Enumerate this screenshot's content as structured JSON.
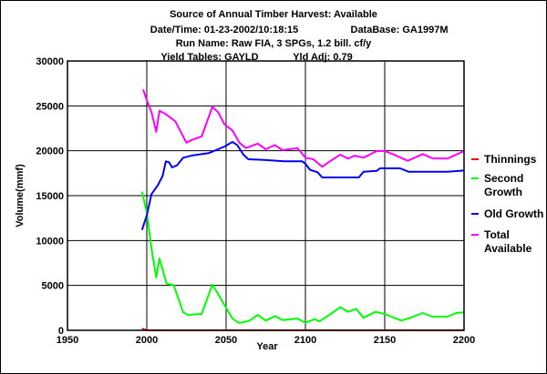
{
  "header": {
    "title": "Source of Annual Timber Harvest: Available",
    "datetime": "Date/Time: 01-23-2002/10:18:15",
    "database": "DataBase: GA1997M",
    "run_name": "Run Name: Raw FIA, 3 SPGs, 1.2 bill. cf/y",
    "yield_tables": "Yield Tables: GAYLD",
    "yld_adj": "Yld Adj: 0.79"
  },
  "chart_data": {
    "type": "line",
    "title": "Source of Annual Timber Harvest: Available",
    "xlabel": "Year",
    "ylabel": "Volume(mmf)",
    "xlim": [
      1950,
      2200
    ],
    "ylim": [
      0,
      30000
    ],
    "xticks": [
      "1950",
      "2000",
      "2050",
      "2100",
      "2150",
      "2200"
    ],
    "yticks": [
      "0",
      "5000",
      "10000",
      "15000",
      "20000",
      "25000",
      "30000"
    ],
    "grid": true,
    "legend_placement": "right",
    "series": [
      {
        "name": "Thinnings",
        "color": "#ff0000",
        "points": [
          [
            1997,
            200
          ],
          [
            2000,
            0
          ],
          [
            2200,
            0
          ]
        ]
      },
      {
        "name": "Second Growth",
        "color": "#00ff00",
        "points": [
          [
            1997,
            15440
          ],
          [
            2000,
            13140
          ],
          [
            2003,
            9090
          ],
          [
            2006,
            5880
          ],
          [
            2008,
            8010
          ],
          [
            2012.5,
            5200
          ],
          [
            2017,
            5030
          ],
          [
            2023,
            2000
          ],
          [
            2026,
            1720
          ],
          [
            2034.6,
            1820
          ],
          [
            2041.4,
            5100
          ],
          [
            2045,
            4020
          ],
          [
            2050,
            2500
          ],
          [
            2054,
            1320
          ],
          [
            2058,
            810
          ],
          [
            2064.5,
            1040
          ],
          [
            2070,
            1720
          ],
          [
            2075,
            1080
          ],
          [
            2081,
            1590
          ],
          [
            2085.6,
            1150
          ],
          [
            2095,
            1320
          ],
          [
            2100,
            850
          ],
          [
            2106,
            1250
          ],
          [
            2108.7,
            980
          ],
          [
            2116,
            1820
          ],
          [
            2122,
            2570
          ],
          [
            2127,
            2060
          ],
          [
            2132,
            2400
          ],
          [
            2136.6,
            1390
          ],
          [
            2144,
            2060
          ],
          [
            2150,
            1820
          ],
          [
            2160.6,
            1080
          ],
          [
            2166,
            1390
          ],
          [
            2174,
            1930
          ],
          [
            2180,
            1520
          ],
          [
            2189.5,
            1520
          ],
          [
            2195,
            1930
          ],
          [
            2200,
            2000
          ]
        ]
      },
      {
        "name": "Old Growth",
        "color": "#0000ff",
        "points": [
          [
            1997,
            11180
          ],
          [
            2000,
            12800
          ],
          [
            2003,
            15170
          ],
          [
            2007,
            16180
          ],
          [
            2010,
            17200
          ],
          [
            2012,
            18820
          ],
          [
            2014,
            18720
          ],
          [
            2016,
            18140
          ],
          [
            2019,
            18370
          ],
          [
            2023,
            19230
          ],
          [
            2029,
            19490
          ],
          [
            2039,
            19730
          ],
          [
            2049,
            20470
          ],
          [
            2054,
            20980
          ],
          [
            2057,
            20640
          ],
          [
            2061,
            19560
          ],
          [
            2064,
            19050
          ],
          [
            2074,
            18980
          ],
          [
            2086.6,
            18820
          ],
          [
            2098,
            18820
          ],
          [
            2100,
            18550
          ],
          [
            2103,
            17870
          ],
          [
            2107.7,
            17600
          ],
          [
            2110.6,
            17030
          ],
          [
            2133.7,
            17030
          ],
          [
            2136.6,
            17670
          ],
          [
            2145,
            17770
          ],
          [
            2147,
            18040
          ],
          [
            2159.7,
            18040
          ],
          [
            2165,
            17670
          ],
          [
            2189.5,
            17670
          ],
          [
            2200,
            17800
          ]
        ]
      },
      {
        "name": "Total Available",
        "color": "#ff00ff",
        "points": [
          [
            1997.7,
            26830
          ],
          [
            2000,
            25640
          ],
          [
            2003,
            24290
          ],
          [
            2006,
            22100
          ],
          [
            2008,
            24460
          ],
          [
            2011.6,
            24120
          ],
          [
            2018,
            23280
          ],
          [
            2025,
            20900
          ],
          [
            2029,
            21250
          ],
          [
            2034.6,
            21590
          ],
          [
            2041.4,
            24900
          ],
          [
            2045,
            24290
          ],
          [
            2049,
            22940
          ],
          [
            2054,
            22260
          ],
          [
            2058.4,
            20900
          ],
          [
            2062.5,
            20300
          ],
          [
            2070,
            20800
          ],
          [
            2075,
            20170
          ],
          [
            2080.8,
            20640
          ],
          [
            2085.5,
            20070
          ],
          [
            2095,
            20300
          ],
          [
            2100,
            19230
          ],
          [
            2105,
            19050
          ],
          [
            2110.6,
            18210
          ],
          [
            2116,
            18880
          ],
          [
            2122,
            19560
          ],
          [
            2127,
            19120
          ],
          [
            2131,
            19460
          ],
          [
            2136.6,
            19230
          ],
          [
            2145,
            19970
          ],
          [
            2150,
            19970
          ],
          [
            2155,
            19630
          ],
          [
            2164.5,
            18880
          ],
          [
            2174,
            19630
          ],
          [
            2180,
            19160
          ],
          [
            2189.5,
            19120
          ],
          [
            2200,
            19970
          ]
        ]
      }
    ],
    "legend": [
      {
        "lines": [
          "Thinnings"
        ],
        "color": "#ff0000"
      },
      {
        "lines": [
          "Second",
          "Growth"
        ],
        "color": "#00ff00"
      },
      {
        "lines": [
          "Old Growth"
        ],
        "color": "#0000ff"
      },
      {
        "lines": [
          "Total",
          "Available"
        ],
        "color": "#ff00ff"
      }
    ]
  }
}
